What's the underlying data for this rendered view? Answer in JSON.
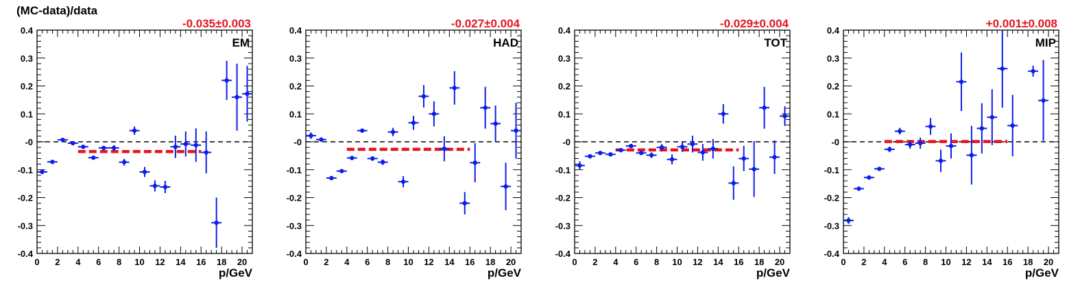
{
  "figure": {
    "ylabel": "(MC-data)/data",
    "xlabel": "p/GeV"
  },
  "chart_data": [
    {
      "type": "scatter",
      "panel_label": "EM",
      "fit_result": "-0.035±0.003",
      "fit_value": -0.035,
      "fit_range": [
        4,
        16
      ],
      "xlabel": "p/GeV",
      "ylabel": "(MC-data)/data",
      "xlim": [
        0,
        21
      ],
      "ylim": [
        -0.4,
        0.4
      ],
      "xticks": [
        0,
        2,
        4,
        6,
        8,
        10,
        12,
        14,
        16,
        18,
        20
      ],
      "yticks": [
        -0.4,
        -0.3,
        -0.2,
        -0.1,
        0,
        0.1,
        0.2,
        0.3,
        0.4
      ],
      "ytick_labels": [
        "-0.4",
        "-0.3",
        "-0.2",
        "-0.1",
        "-0",
        "0.1",
        "0.2",
        "0.3",
        "0.4"
      ],
      "points": [
        {
          "x": 0.5,
          "y": -0.108,
          "err": 0.005
        },
        {
          "x": 1.5,
          "y": -0.072,
          "err": 0.005
        },
        {
          "x": 2.5,
          "y": 0.007,
          "err": 0.006
        },
        {
          "x": 3.5,
          "y": -0.005,
          "err": 0.005
        },
        {
          "x": 4.5,
          "y": -0.018,
          "err": 0.005
        },
        {
          "x": 5.5,
          "y": -0.057,
          "err": 0.006
        },
        {
          "x": 6.5,
          "y": -0.022,
          "err": 0.007
        },
        {
          "x": 7.5,
          "y": -0.022,
          "err": 0.01
        },
        {
          "x": 8.5,
          "y": -0.073,
          "err": 0.012
        },
        {
          "x": 9.5,
          "y": 0.04,
          "err": 0.015
        },
        {
          "x": 10.5,
          "y": -0.108,
          "err": 0.018
        },
        {
          "x": 11.5,
          "y": -0.158,
          "err": 0.02
        },
        {
          "x": 12.5,
          "y": -0.162,
          "err": 0.022
        },
        {
          "x": 13.5,
          "y": -0.018,
          "err": 0.04
        },
        {
          "x": 14.5,
          "y": -0.008,
          "err": 0.045
        },
        {
          "x": 15.5,
          "y": -0.012,
          "err": 0.06
        },
        {
          "x": 16.5,
          "y": -0.038,
          "err": 0.075
        },
        {
          "x": 17.5,
          "y": -0.29,
          "err": 0.09
        },
        {
          "x": 18.5,
          "y": 0.22,
          "err": 0.07
        },
        {
          "x": 19.5,
          "y": 0.16,
          "err": 0.12
        },
        {
          "x": 20.5,
          "y": 0.172,
          "err": 0.1
        }
      ]
    },
    {
      "type": "scatter",
      "panel_label": "HAD",
      "fit_result": "-0.027±0.004",
      "fit_value": -0.027,
      "fit_range": [
        4,
        16
      ],
      "xlabel": "p/GeV",
      "ylabel": "",
      "xlim": [
        0,
        21
      ],
      "ylim": [
        -0.4,
        0.4
      ],
      "xticks": [
        0,
        2,
        4,
        6,
        8,
        10,
        12,
        14,
        16,
        18,
        20
      ],
      "yticks": [
        -0.4,
        -0.3,
        -0.2,
        -0.1,
        0,
        0.1,
        0.2,
        0.3,
        0.4
      ],
      "ytick_labels": [
        "-0.4",
        "-0.3",
        "-0.2",
        "-0.1",
        "-0",
        "0.1",
        "0.2",
        "0.3",
        "0.4"
      ],
      "points": [
        {
          "x": 0.5,
          "y": 0.022,
          "err": 0.012
        },
        {
          "x": 1.5,
          "y": 0.008,
          "err": 0.006
        },
        {
          "x": 2.5,
          "y": -0.13,
          "err": 0.005
        },
        {
          "x": 3.5,
          "y": -0.105,
          "err": 0.005
        },
        {
          "x": 4.5,
          "y": -0.058,
          "err": 0.006
        },
        {
          "x": 5.5,
          "y": 0.04,
          "err": 0.006
        },
        {
          "x": 6.5,
          "y": -0.06,
          "err": 0.008
        },
        {
          "x": 7.5,
          "y": -0.073,
          "err": 0.01
        },
        {
          "x": 8.5,
          "y": 0.035,
          "err": 0.015
        },
        {
          "x": 9.5,
          "y": -0.143,
          "err": 0.02
        },
        {
          "x": 10.5,
          "y": 0.068,
          "err": 0.025
        },
        {
          "x": 11.5,
          "y": 0.163,
          "err": 0.04
        },
        {
          "x": 12.5,
          "y": 0.1,
          "err": 0.045
        },
        {
          "x": 13.5,
          "y": -0.025,
          "err": 0.045
        },
        {
          "x": 14.5,
          "y": 0.193,
          "err": 0.06
        },
        {
          "x": 15.5,
          "y": -0.22,
          "err": 0.04
        },
        {
          "x": 16.5,
          "y": -0.075,
          "err": 0.07
        },
        {
          "x": 17.5,
          "y": 0.122,
          "err": 0.075
        },
        {
          "x": 18.5,
          "y": 0.065,
          "err": 0.065
        },
        {
          "x": 19.5,
          "y": -0.16,
          "err": 0.085
        },
        {
          "x": 20.5,
          "y": 0.04,
          "err": 0.1
        }
      ]
    },
    {
      "type": "scatter",
      "panel_label": "TOT",
      "fit_result": "-0.029±0.004",
      "fit_value": -0.029,
      "fit_range": [
        4,
        16
      ],
      "xlabel": "p/GeV",
      "ylabel": "",
      "xlim": [
        0,
        21
      ],
      "ylim": [
        -0.4,
        0.4
      ],
      "xticks": [
        0,
        2,
        4,
        6,
        8,
        10,
        12,
        14,
        16,
        18,
        20
      ],
      "yticks": [
        -0.4,
        -0.3,
        -0.2,
        -0.1,
        0,
        0.1,
        0.2,
        0.3,
        0.4
      ],
      "ytick_labels": [
        "-0.4",
        "-0.3",
        "-0.2",
        "-0.1",
        "-0",
        "0.1",
        "0.2",
        "0.3",
        "0.4"
      ],
      "points": [
        {
          "x": 0.5,
          "y": -0.085,
          "err": 0.015
        },
        {
          "x": 1.5,
          "y": -0.052,
          "err": 0.006
        },
        {
          "x": 2.5,
          "y": -0.04,
          "err": 0.005
        },
        {
          "x": 3.5,
          "y": -0.045,
          "err": 0.005
        },
        {
          "x": 4.5,
          "y": -0.03,
          "err": 0.005
        },
        {
          "x": 5.5,
          "y": -0.015,
          "err": 0.006
        },
        {
          "x": 6.5,
          "y": -0.04,
          "err": 0.008
        },
        {
          "x": 7.5,
          "y": -0.048,
          "err": 0.01
        },
        {
          "x": 8.5,
          "y": -0.02,
          "err": 0.012
        },
        {
          "x": 9.5,
          "y": -0.063,
          "err": 0.018
        },
        {
          "x": 10.5,
          "y": -0.018,
          "err": 0.018
        },
        {
          "x": 11.5,
          "y": -0.008,
          "err": 0.03
        },
        {
          "x": 12.5,
          "y": -0.038,
          "err": 0.03
        },
        {
          "x": 13.5,
          "y": -0.025,
          "err": 0.035
        },
        {
          "x": 14.5,
          "y": 0.1,
          "err": 0.035
        },
        {
          "x": 15.5,
          "y": -0.148,
          "err": 0.06
        },
        {
          "x": 16.5,
          "y": -0.06,
          "err": 0.045
        },
        {
          "x": 17.5,
          "y": -0.098,
          "err": 0.1
        },
        {
          "x": 18.5,
          "y": 0.122,
          "err": 0.075
        },
        {
          "x": 19.5,
          "y": -0.055,
          "err": 0.06
        },
        {
          "x": 20.5,
          "y": 0.092,
          "err": 0.035
        }
      ]
    },
    {
      "type": "scatter",
      "panel_label": "MIP",
      "fit_result": "+0.001±0.008",
      "fit_value": 0.001,
      "fit_range": [
        4,
        16
      ],
      "xlabel": "p/GeV",
      "ylabel": "",
      "xlim": [
        0,
        21
      ],
      "ylim": [
        -0.4,
        0.4
      ],
      "xticks": [
        0,
        2,
        4,
        6,
        8,
        10,
        12,
        14,
        16,
        18,
        20
      ],
      "yticks": [
        -0.4,
        -0.3,
        -0.2,
        -0.1,
        0,
        0.1,
        0.2,
        0.3,
        0.4
      ],
      "ytick_labels": [
        "-0.4",
        "-0.3",
        "-0.2",
        "-0.1",
        "-0",
        "0.1",
        "0.2",
        "0.3",
        "0.4"
      ],
      "points": [
        {
          "x": 0.5,
          "y": -0.282,
          "err": 0.012
        },
        {
          "x": 1.5,
          "y": -0.168,
          "err": 0.006
        },
        {
          "x": 2.5,
          "y": -0.128,
          "err": 0.005
        },
        {
          "x": 3.5,
          "y": -0.097,
          "err": 0.005
        },
        {
          "x": 4.5,
          "y": -0.027,
          "err": 0.01
        },
        {
          "x": 5.5,
          "y": 0.038,
          "err": 0.012
        },
        {
          "x": 6.5,
          "y": -0.01,
          "err": 0.015
        },
        {
          "x": 7.5,
          "y": -0.005,
          "err": 0.02
        },
        {
          "x": 8.5,
          "y": 0.055,
          "err": 0.03
        },
        {
          "x": 9.5,
          "y": -0.068,
          "err": 0.04
        },
        {
          "x": 10.5,
          "y": -0.015,
          "err": 0.045
        },
        {
          "x": 11.5,
          "y": 0.215,
          "err": 0.105
        },
        {
          "x": 12.5,
          "y": -0.048,
          "err": 0.105
        },
        {
          "x": 13.5,
          "y": 0.048,
          "err": 0.09
        },
        {
          "x": 14.5,
          "y": 0.088,
          "err": 0.1
        },
        {
          "x": 15.5,
          "y": 0.262,
          "err": 0.14
        },
        {
          "x": 16.5,
          "y": 0.058,
          "err": 0.11
        },
        {
          "x": 18.5,
          "y": 0.253,
          "err": 0.02
        },
        {
          "x": 19.5,
          "y": 0.148,
          "err": 0.145
        }
      ]
    }
  ],
  "colors": {
    "points": "#0a1ee6",
    "fit": "#e6141e",
    "fit_text": "#e6141e",
    "zero_line": "#000000",
    "axes": "#000000"
  }
}
